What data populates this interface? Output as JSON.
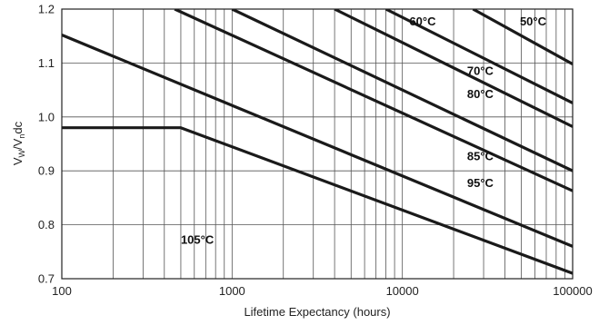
{
  "chart_data": {
    "type": "line",
    "xlabel": "Lifetime Expectancy (hours)",
    "ylabel": "VW/Vndc",
    "ylabel_parts": {
      "main": "V",
      "sub1": "W",
      "mid": "/V",
      "sub2": "n",
      "tail": "dc"
    },
    "x_scale": "log",
    "xlim": [
      100,
      100000
    ],
    "ylim": [
      0.7,
      1.2
    ],
    "grid": true,
    "x_ticks": [
      {
        "value": 100,
        "label": "100"
      },
      {
        "value": 1000,
        "label": "1000"
      },
      {
        "value": 10000,
        "label": "10000"
      },
      {
        "value": 100000,
        "label": "100000"
      }
    ],
    "y_ticks": [
      {
        "value": 0.7,
        "label": "0.7"
      },
      {
        "value": 0.8,
        "label": "0.8"
      },
      {
        "value": 0.9,
        "label": "0.9"
      },
      {
        "value": 1.0,
        "label": "1.0"
      },
      {
        "value": 1.1,
        "label": "1.1"
      },
      {
        "value": 1.2,
        "label": "1.2"
      }
    ],
    "series": [
      {
        "name": "105°C",
        "points": [
          [
            100,
            0.98
          ],
          [
            500,
            0.98
          ],
          [
            100000,
            0.71
          ]
        ],
        "label_at": [
          500,
          0.765
        ]
      },
      {
        "name": "95°C",
        "points": [
          [
            100,
            1.152
          ],
          [
            100000,
            0.76
          ]
        ],
        "label_at": [
          24000,
          0.87
        ]
      },
      {
        "name": "85°C",
        "points": [
          [
            460,
            1.2
          ],
          [
            100000,
            0.863
          ]
        ],
        "label_at": [
          24000,
          0.92
        ]
      },
      {
        "name": "80°C",
        "points": [
          [
            1000,
            1.2
          ],
          [
            100000,
            0.9
          ]
        ],
        "label_at": [
          24000,
          1.035
        ]
      },
      {
        "name": "70°C",
        "points": [
          [
            4000,
            1.2
          ],
          [
            100000,
            0.982
          ]
        ],
        "label_at": [
          24000,
          1.078
        ]
      },
      {
        "name": "60°C",
        "points": [
          [
            8000,
            1.2
          ],
          [
            100000,
            1.026
          ]
        ],
        "label_at": [
          11000,
          1.17
        ]
      },
      {
        "name": "50°C",
        "points": [
          [
            26000,
            1.2
          ],
          [
            100000,
            1.098
          ]
        ],
        "label_at": [
          49000,
          1.17
        ]
      }
    ]
  }
}
